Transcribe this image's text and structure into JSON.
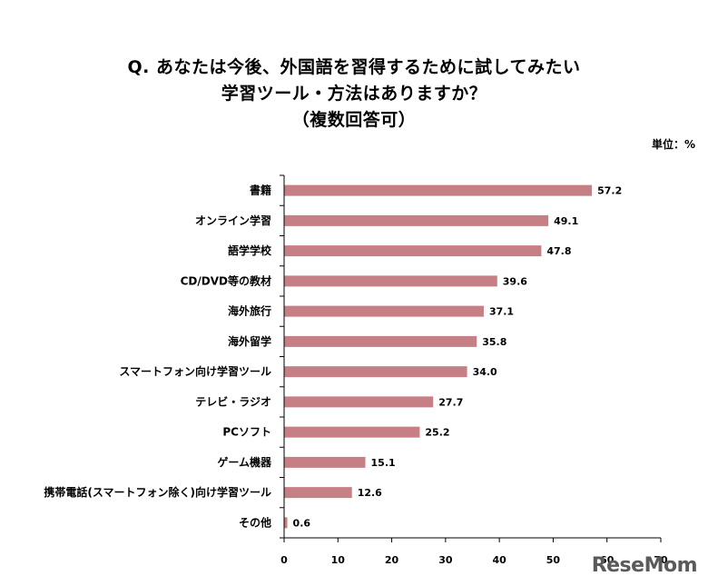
{
  "title": {
    "line1": "Q. あなたは今後、外国語を習得するために試してみたい",
    "line2": "学習ツール・方法はありますか？",
    "line3": "（複数回答可）"
  },
  "unit_label": "単位：%",
  "watermark": "ReseMom",
  "colors": {
    "bar": "#c67f84",
    "axis": "#000000"
  },
  "chart_data": {
    "type": "bar",
    "orientation": "horizontal",
    "categories": [
      "書籍",
      "オンライン学習",
      "語学学校",
      "CD/DVD等の教材",
      "海外旅行",
      "海外留学",
      "スマートフォン向け学習ツール",
      "テレビ・ラジオ",
      "PCソフト",
      "ゲーム機器",
      "携帯電話(スマートフォン除く)向け学習ツール",
      "その他"
    ],
    "values": [
      57.2,
      49.1,
      47.8,
      39.6,
      37.1,
      35.8,
      34.0,
      27.7,
      25.2,
      15.1,
      12.6,
      0.6
    ],
    "value_labels": [
      "57.2",
      "49.1",
      "47.8",
      "39.6",
      "37.1",
      "35.8",
      "34.0",
      "27.7",
      "25.2",
      "15.1",
      "12.6",
      "0.6"
    ],
    "xlim": [
      0,
      70
    ],
    "xticks": [
      0,
      10,
      20,
      30,
      40,
      50,
      60,
      70
    ],
    "grid": false
  }
}
